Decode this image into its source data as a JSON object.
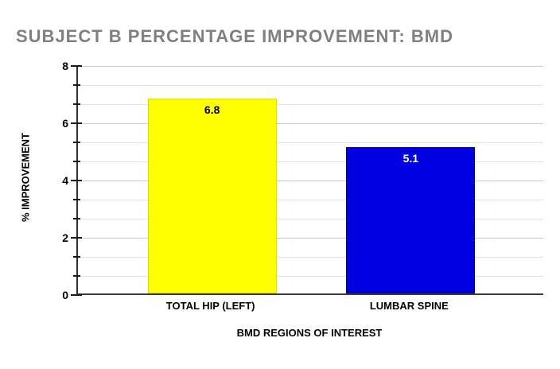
{
  "page": {
    "background": "#ffffff"
  },
  "chart_data": {
    "type": "bar",
    "title": "SUBJECT B PERCENTAGE IMPROVEMENT: BMD",
    "xlabel": "BMD REGIONS OF INTEREST",
    "ylabel": "% IMPROVEMENT",
    "categories": [
      "TOTAL HIP (LEFT)",
      "LUMBAR SPINE"
    ],
    "values": [
      6.8,
      5.1
    ],
    "value_labels": [
      "6.8",
      "5.1"
    ],
    "ylim": [
      0,
      8
    ],
    "y_major_ticks": [
      0,
      2,
      4,
      6,
      8
    ],
    "y_major_tick_labels": [
      "0",
      "2",
      "4",
      "6",
      "8"
    ],
    "y_minor_divisions_per_major": 3,
    "grid": "horizontal gridlines at every major and minor tick",
    "legend_position": "none",
    "colors": {
      "title_text": "#808080",
      "bar_fills": [
        "#ffff00",
        "#0000e0"
      ],
      "bar_borders": [
        "#dede00",
        "#0000a8"
      ],
      "bar_value_text": [
        "#000000",
        "#ffffff"
      ],
      "axis_line": "#2e2e2e",
      "major_gridline": "#c9c9c9",
      "minor_gridline": "#e4e4e4",
      "label_text": "#000000"
    }
  }
}
